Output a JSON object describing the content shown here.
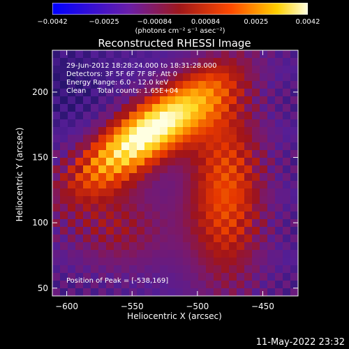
{
  "chart_data": {
    "type": "heatmap",
    "title": "Reconstructed RHESSI Image",
    "xlabel": "Heliocentric X (arcsec)",
    "ylabel": "Heliocentric Y (arcsec)",
    "xlim": [
      -611,
      -423
    ],
    "ylim": [
      44,
      232
    ],
    "x_ticks": [
      -600,
      -550,
      -500,
      -450
    ],
    "x_tick_labels": [
      "−600",
      "−550",
      "−500",
      "−450"
    ],
    "y_ticks": [
      50,
      100,
      150,
      200
    ],
    "y_tick_labels": [
      "50",
      "100",
      "150",
      "200"
    ],
    "colorbar": {
      "range": [
        -0.0042,
        0.0042
      ],
      "ticks": [
        -0.0042,
        -0.0025,
        -0.00084,
        0.00084,
        0.0025,
        0.0042
      ],
      "tick_labels": [
        "−0.0042",
        "−0.0025",
        "−0.00084",
        "0.00084",
        "0.0025",
        "0.0042"
      ],
      "unit": "(photons cm⁻² s⁻¹ asec⁻²)",
      "colors": [
        "#0000ff",
        "#7a1ea0",
        "#b01a1a",
        "#ff5a00",
        "#ffd000",
        "#ffffd8"
      ]
    },
    "annotations": {
      "time": "29-Jun-2012 18:28:24.000 to 18:31:28.000",
      "detectors": "Detectors: 3F 5F 6F 7F 8F, Att 0",
      "energy": "Energy Range: 6.0 - 12.0 keV",
      "method_counts": "Clean     Total counts: 1.65E+04",
      "peak": "Position of Peak = [-538,169]"
    },
    "peak_position": [
      -538,
      169
    ],
    "background_colors": {
      "page": "#000000",
      "axes": "#ffffff",
      "text": "#ffffff"
    }
  },
  "footer_timestamp": "11-May-2022 23:32"
}
